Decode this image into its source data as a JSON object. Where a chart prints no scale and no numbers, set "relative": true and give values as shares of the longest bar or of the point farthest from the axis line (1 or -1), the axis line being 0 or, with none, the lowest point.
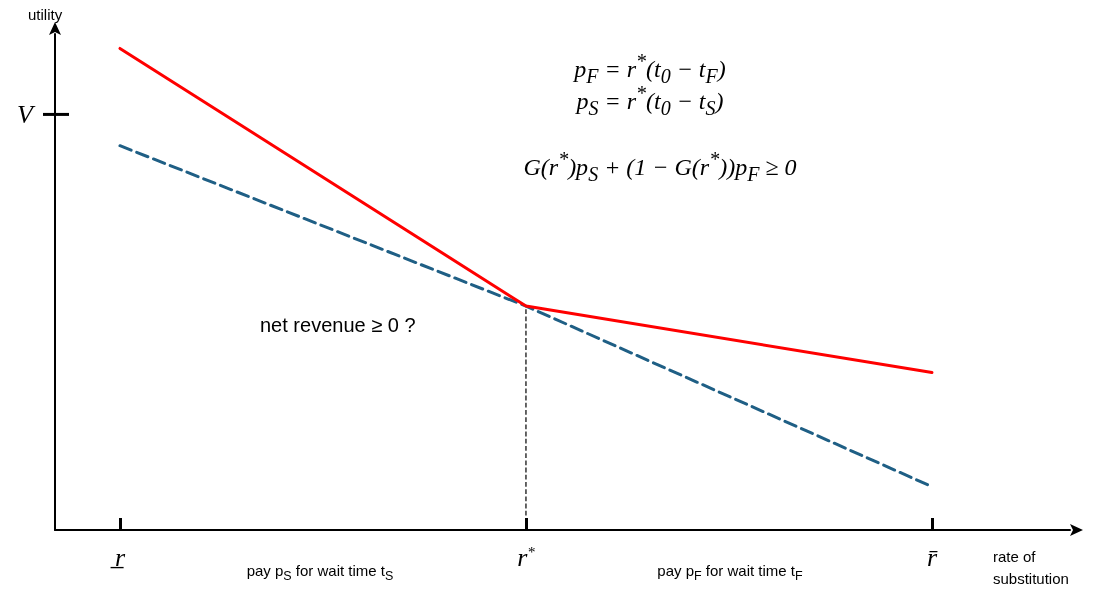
{
  "chart_data": {
    "type": "line",
    "relative": true,
    "ylabel": "utility",
    "xlabel": "rate of substitution",
    "categories": [
      "r̲",
      "r$^{*}$",
      "r̄"
    ],
    "series": [
      {
        "color": "#ff0000",
        "values": [
          1,
          0.465,
          0.327
        ],
        "line_style": "solid"
      },
      {
        "color": "#1f5f85",
        "values": [
          0.798,
          0.465,
          0.09
        ],
        "line_style": "dashed"
      }
    ],
    "ref_lines": [
      {
        "axis": "y",
        "value": 0.863,
        "label": "V"
      },
      {
        "axis": "x",
        "value": "r$^{*}$",
        "line_style": "dashed",
        "color": "#000000"
      }
    ],
    "annotations": [
      "p$_{F}$ = r$^{*}$(t$_{0}$ − t$_{F}$)",
      "p$_{S}$ = r$^{*}$(t$_{0}$ − t$_{S}$)",
      "G(r$^{*}$)p$_{S}$ + (1 − G(r$^{*}$))p$_{F}$ ≥ 0",
      "net revenue ≥ 0 ?",
      "pay p$_{S}$ for wait time t$_{S}$",
      "pay p$_{F}$ for wait time t$_{F}$"
    ],
    "grid": false,
    "marker": "none"
  }
}
